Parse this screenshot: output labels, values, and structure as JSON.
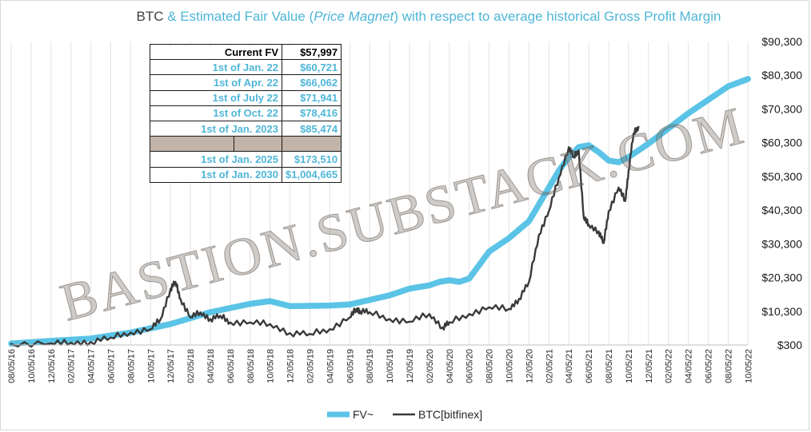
{
  "chart_data": {
    "type": "line",
    "title": {
      "prefix": "BTC ",
      "part1": "& Estimated Fair Value (",
      "italic": "Price Magnet",
      "part2": ") with respect to average historical Gross Profit Margin"
    },
    "y_axis": {
      "position": "right",
      "ylim": [
        300,
        90300
      ],
      "ticks": [
        "$300",
        "$10,300",
        "$20,300",
        "$30,300",
        "$40,300",
        "$50,300",
        "$60,300",
        "$70,300",
        "$80,300",
        "$90,300"
      ],
      "grid": false
    },
    "x_axis": {
      "ticks": [
        "08/05/16",
        "10/05/16",
        "12/05/16",
        "02/05/17",
        "04/05/17",
        "06/05/17",
        "08/05/17",
        "10/05/17",
        "12/05/17",
        "02/05/18",
        "04/05/18",
        "06/05/18",
        "08/05/18",
        "10/05/18",
        "12/05/18",
        "02/05/19",
        "04/05/19",
        "06/05/19",
        "08/05/19",
        "10/05/19",
        "12/05/19",
        "02/05/20",
        "04/05/20",
        "06/05/20",
        "08/05/20",
        "10/05/20",
        "12/05/20",
        "02/05/21",
        "04/05/21",
        "06/05/21",
        "08/05/21",
        "10/05/21",
        "12/05/21",
        "02/05/22",
        "04/05/22",
        "06/05/22",
        "08/05/22",
        "10/05/22"
      ],
      "grid": true
    },
    "legend": {
      "placement": "bottom",
      "entries": [
        "FV~",
        "BTC[bitfinex]"
      ]
    },
    "series": [
      {
        "name": "FV~",
        "color": "#5bc4e6",
        "x": [
          "08/05/16",
          "12/05/16",
          "04/05/17",
          "08/05/17",
          "12/05/17",
          "04/05/18",
          "08/05/18",
          "10/05/18",
          "12/05/18",
          "04/05/19",
          "06/05/19",
          "10/05/19",
          "12/05/19",
          "02/05/20",
          "03/05/20",
          "04/05/20",
          "05/05/20",
          "06/05/20",
          "08/05/20",
          "10/05/20",
          "12/05/20",
          "02/05/21",
          "03/05/21",
          "04/05/21",
          "05/05/21",
          "06/05/21",
          "07/05/21",
          "08/05/21",
          "09/05/21",
          "10/05/21",
          "12/05/21",
          "02/05/22",
          "04/05/22",
          "06/05/22",
          "08/05/22",
          "10/05/22"
        ],
        "values": [
          700,
          1500,
          2200,
          4000,
          6500,
          10000,
          12500,
          13300,
          11800,
          12000,
          12300,
          15000,
          17000,
          18000,
          19000,
          19500,
          19000,
          20000,
          28000,
          32000,
          37000,
          47000,
          52000,
          56000,
          59000,
          59500,
          57500,
          55000,
          54500,
          56000,
          60000,
          64500,
          69000,
          73000,
          77000,
          79200
        ]
      },
      {
        "name": "BTC[bitfinex]",
        "color": "#3a3a3a",
        "x": [
          "08/05/16",
          "12/05/16",
          "02/05/17",
          "04/05/17",
          "06/05/17",
          "08/05/17",
          "10/05/17",
          "11/05/17",
          "12/05/17",
          "12/20/17",
          "01/05/18",
          "02/05/18",
          "03/05/18",
          "04/05/18",
          "05/05/18",
          "06/05/18",
          "08/05/18",
          "10/05/18",
          "12/05/18",
          "02/05/19",
          "04/05/19",
          "06/05/19",
          "06/25/19",
          "07/05/19",
          "08/05/19",
          "10/05/19",
          "12/05/19",
          "02/05/20",
          "03/15/20",
          "04/05/20",
          "06/05/20",
          "08/05/20",
          "10/05/20",
          "11/05/20",
          "12/05/20",
          "01/05/21",
          "02/05/21",
          "03/05/21",
          "04/05/21",
          "04/20/21",
          "05/05/21",
          "05/20/21",
          "06/05/21",
          "07/05/21",
          "07/20/21",
          "08/05/21",
          "09/05/21",
          "09/25/21",
          "10/05/21",
          "10/20/21",
          "11/05/21"
        ],
        "values": [
          600,
          800,
          1000,
          1200,
          2500,
          4000,
          5000,
          8000,
          17000,
          19000,
          14000,
          8500,
          10000,
          8000,
          9000,
          7000,
          7000,
          6500,
          3800,
          3600,
          5000,
          8500,
          11000,
          10500,
          10000,
          8000,
          7200,
          9500,
          5500,
          7000,
          9500,
          11500,
          11000,
          14000,
          19000,
          33000,
          40000,
          50000,
          59000,
          56000,
          58000,
          38000,
          36000,
          34000,
          30500,
          40000,
          47000,
          43000,
          52000,
          63000,
          65000
        ]
      }
    ]
  },
  "table": {
    "rows": [
      {
        "label": "Current FV",
        "value": "$57,997",
        "kind": "head"
      },
      {
        "label": "1st of Jan. 22",
        "value": "$60,721",
        "kind": "row"
      },
      {
        "label": "1st of Apr. 22",
        "value": "$66,062",
        "kind": "row"
      },
      {
        "label": "1st of July 22",
        "value": "$71,941",
        "kind": "row"
      },
      {
        "label": "1st of Oct. 22",
        "value": "$78,416",
        "kind": "row"
      },
      {
        "label": "1st of Jan. 2023",
        "value": "$85,474",
        "kind": "row"
      },
      {
        "label": "",
        "value": "",
        "kind": "sep"
      },
      {
        "label": "1st of Jan. 2025",
        "value": "$173,510",
        "kind": "row"
      },
      {
        "label": "1st of Jan. 2030",
        "value": "$1,004,665",
        "kind": "row"
      }
    ]
  },
  "watermark": "BASTION.SUBSTACK.COM",
  "colors": {
    "fv": "#5bc4e6",
    "btc": "#3a3a3a",
    "title_accent": "#4fb6d8",
    "table_value": "#4fb6d8",
    "separator_fill": "#c2b4a8"
  }
}
